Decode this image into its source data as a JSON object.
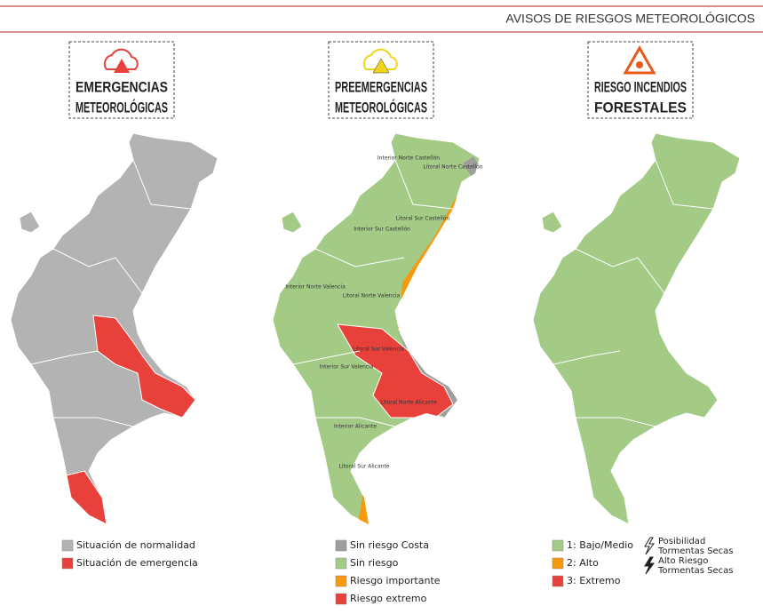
{
  "header": {
    "title": "AVISOS DE RIESGOS METEOROLÓGICOS"
  },
  "panels": [
    {
      "title": [
        "EMERGENCIAS",
        "METEOROLÓGICAS"
      ],
      "legend": [
        {
          "label": "Situación de normalidad",
          "color": "#b3b3b3"
        },
        {
          "label": "Situación de emergencia",
          "color": "#e8403a"
        }
      ]
    },
    {
      "title": [
        "PREEMERGENCIAS",
        "METEOROLÓGICAS"
      ],
      "legend": [
        {
          "label": "Sin riesgo Costa",
          "color": "#9e9e9e"
        },
        {
          "label": "Sin riesgo",
          "color": "#a3cb85"
        },
        {
          "label": "Riesgo importante",
          "color": "#f7990d"
        },
        {
          "label": "Riesgo extremo",
          "color": "#e8403a"
        }
      ],
      "zones": [
        "Interior Norte Castellón",
        "Litoral Norte Castellón",
        "Litoral Sur Castellón",
        "Interior Sur Castellón",
        "Interior Norte Valencia",
        "Litoral Norte Valencia",
        "Litoral Sur Valencia",
        "Interior Sur Valencia",
        "Litoral Norte Alicante",
        "Interior Alicante",
        "Litoral Sur Alicante"
      ]
    },
    {
      "title": [
        "RIESGO INCENDIOS",
        "FORESTALES"
      ],
      "legend": [
        {
          "label": "1: Bajo/Medio",
          "color": "#a3cb85"
        },
        {
          "label": "2: Alto",
          "color": "#f7990d"
        },
        {
          "label": "3: Extremo",
          "color": "#e8403a"
        }
      ],
      "storms": [
        [
          "Posibilidad",
          "Tormentas Secas"
        ],
        [
          "Alto Riesgo",
          "Tormentas Secas"
        ]
      ]
    }
  ]
}
